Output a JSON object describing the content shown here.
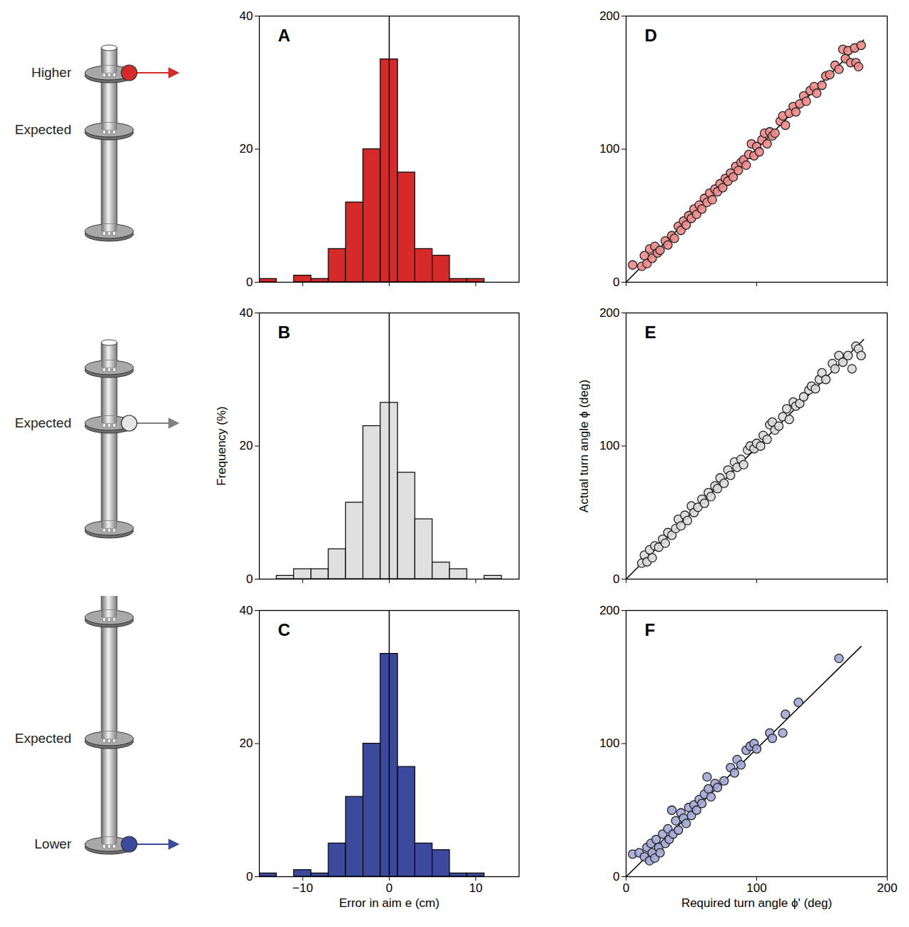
{
  "chart_data": [
    {
      "type": "histogram",
      "title": "A",
      "bins": [
        -15,
        -13,
        -11,
        -9,
        -7,
        -5,
        -3,
        -1,
        1,
        3,
        5,
        7,
        9,
        11,
        13,
        15
      ],
      "values": [
        0.5,
        0,
        1,
        0.5,
        5,
        12,
        20,
        33.5,
        16.5,
        5,
        4,
        0.5,
        0.5,
        0,
        0
      ],
      "color": "#d42a2a",
      "xlim": [
        -15,
        15
      ],
      "xticks": [
        -10,
        0,
        10
      ],
      "ylim": [
        0,
        40
      ],
      "yticks": [
        0,
        20,
        40
      ],
      "reference_x": 0,
      "tick_labels": "y"
    },
    {
      "type": "histogram",
      "title": "B",
      "y_label": "Frequency (%)",
      "bins": [
        -15,
        -13,
        -11,
        -9,
        -7,
        -5,
        -3,
        -1,
        1,
        3,
        5,
        7,
        9,
        11,
        13,
        15
      ],
      "values": [
        0,
        0.5,
        1.5,
        1.5,
        4.5,
        11.5,
        23,
        26.5,
        16,
        9,
        2.5,
        1.5,
        0,
        0.5,
        0
      ],
      "color": "#e0e0e0",
      "xlim": [
        -15,
        15
      ],
      "xticks": [
        -10,
        0,
        10
      ],
      "ylim": [
        0,
        40
      ],
      "yticks": [
        0,
        20,
        40
      ],
      "reference_x": 0,
      "tick_labels": "y"
    },
    {
      "type": "histogram",
      "title": "C",
      "x_label": "Error in aim e (cm)",
      "bins": [
        -15,
        -13,
        -11,
        -9,
        -7,
        -5,
        -3,
        -1,
        1,
        3,
        5,
        7,
        9,
        11,
        13,
        15
      ],
      "values": [
        0.5,
        0,
        1,
        0.5,
        5,
        12,
        20,
        33.5,
        16.5,
        5,
        4,
        0.5,
        0.5,
        0,
        0
      ],
      "color": "#3b4a9c",
      "xlim": [
        -15,
        15
      ],
      "xticks": [
        -10,
        0,
        10
      ],
      "ylim": [
        0,
        40
      ],
      "yticks": [
        0,
        20,
        40
      ],
      "reference_x": 0,
      "tick_labels": true
    },
    {
      "type": "scatter",
      "title": "D",
      "marker": "circle",
      "color": "#f08a8a",
      "x": [
        5,
        12,
        14,
        16,
        18,
        20,
        22,
        24,
        26,
        30,
        32,
        35,
        37,
        40,
        42,
        44,
        46,
        48,
        50,
        52,
        54,
        56,
        58,
        60,
        62,
        64,
        66,
        68,
        70,
        72,
        74,
        76,
        78,
        80,
        82,
        84,
        86,
        88,
        90,
        92,
        94,
        96,
        98,
        100,
        102,
        104,
        106,
        108,
        110,
        112,
        114,
        118,
        120,
        122,
        125,
        128,
        130,
        133,
        136,
        138,
        141,
        144,
        146,
        150,
        153,
        156,
        160,
        163,
        166,
        168,
        170,
        172,
        175,
        176,
        178,
        180
      ],
      "y": [
        13,
        12,
        20,
        14,
        25,
        18,
        27,
        22,
        24,
        31,
        28,
        35,
        33,
        42,
        39,
        46,
        43,
        50,
        48,
        55,
        51,
        58,
        55,
        63,
        60,
        67,
        62,
        70,
        68,
        74,
        71,
        78,
        76,
        82,
        79,
        87,
        84,
        90,
        92,
        88,
        96,
        104,
        95,
        102,
        98,
        107,
        112,
        104,
        113,
        110,
        112,
        121,
        125,
        118,
        127,
        132,
        128,
        134,
        140,
        136,
        144,
        147,
        142,
        148,
        155,
        156,
        163,
        160,
        175,
        168,
        174,
        165,
        176,
        165,
        162,
        178
      ],
      "fit_line": {
        "x": [
          0,
          182
        ],
        "y": [
          0,
          182
        ]
      },
      "xlim": [
        0,
        200
      ],
      "xticks": [
        0,
        100,
        200
      ],
      "ylim": [
        0,
        200
      ],
      "yticks": [
        0,
        100,
        200
      ],
      "tick_labels": "y"
    },
    {
      "type": "scatter",
      "title": "E",
      "y_label": "Actual turn angle ϕ (deg)",
      "marker": "circle",
      "color": "#dcdcdc",
      "x": [
        12,
        14,
        16,
        18,
        20,
        22,
        25,
        28,
        30,
        32,
        35,
        38,
        40,
        42,
        45,
        47,
        50,
        52,
        55,
        58,
        60,
        63,
        65,
        68,
        70,
        72,
        75,
        78,
        80,
        83,
        85,
        88,
        90,
        93,
        95,
        98,
        100,
        103,
        105,
        108,
        110,
        112,
        114,
        117,
        120,
        123,
        125,
        128,
        130,
        133,
        136,
        140,
        142,
        145,
        148,
        150,
        153,
        158,
        160,
        163,
        166,
        170,
        173,
        176,
        178,
        180
      ],
      "y": [
        12,
        18,
        13,
        22,
        16,
        25,
        24,
        30,
        27,
        35,
        33,
        38,
        45,
        40,
        48,
        44,
        55,
        50,
        54,
        60,
        57,
        65,
        62,
        70,
        68,
        76,
        72,
        82,
        78,
        88,
        84,
        90,
        86,
        97,
        100,
        98,
        102,
        100,
        108,
        105,
        116,
        118,
        112,
        115,
        122,
        128,
        120,
        133,
        130,
        132,
        137,
        142,
        145,
        143,
        150,
        155,
        150,
        162,
        158,
        168,
        163,
        168,
        158,
        175,
        173,
        168
      ],
      "fit_line": {
        "x": [
          0,
          182
        ],
        "y": [
          0,
          180
        ]
      },
      "xlim": [
        0,
        200
      ],
      "xticks": [
        0,
        100,
        200
      ],
      "ylim": [
        0,
        200
      ],
      "yticks": [
        0,
        100,
        200
      ],
      "tick_labels": "y"
    },
    {
      "type": "scatter",
      "title": "F",
      "x_label": "Required turn angle ϕ' (deg)",
      "marker": "circle",
      "color": "#a3a9d8",
      "x": [
        5,
        10,
        14,
        16,
        18,
        19,
        20,
        22,
        23,
        25,
        26,
        28,
        30,
        32,
        33,
        35,
        36,
        38,
        40,
        42,
        44,
        46,
        48,
        50,
        52,
        54,
        56,
        58,
        60,
        62,
        63,
        65,
        68,
        70,
        75,
        80,
        83,
        85,
        88,
        92,
        95,
        98,
        100,
        110,
        112,
        120,
        122,
        132,
        163
      ],
      "y": [
        17,
        18,
        15,
        22,
        12,
        25,
        18,
        14,
        28,
        22,
        18,
        32,
        25,
        36,
        28,
        50,
        32,
        42,
        35,
        48,
        44,
        40,
        52,
        46,
        54,
        50,
        58,
        55,
        62,
        75,
        66,
        60,
        70,
        67,
        72,
        82,
        78,
        88,
        84,
        95,
        98,
        100,
        96,
        108,
        104,
        108,
        122,
        131,
        164
      ],
      "fit_line": {
        "x": [
          0,
          180
        ],
        "y": [
          0,
          173
        ]
      },
      "xlim": [
        0,
        200
      ],
      "xticks": [
        0,
        100,
        200
      ],
      "ylim": [
        0,
        200
      ],
      "yticks": [
        0,
        100,
        200
      ],
      "tick_labels": true
    }
  ],
  "diagrams": [
    {
      "labels": [
        "Higher",
        "Expected",
        null
      ],
      "ball": "Higher",
      "colors": [
        "#d42a2a",
        "#d42a2a"
      ]
    },
    {
      "labels": [
        null,
        "Expected",
        null
      ],
      "ball": "Expected",
      "colors": [
        "#e6e6e6",
        "#808080"
      ]
    },
    {
      "labels": [
        null,
        "Expected",
        "Lower"
      ],
      "ball": "Lower",
      "colors": [
        "#3b4a9c",
        "#3b4a9c"
      ]
    }
  ]
}
